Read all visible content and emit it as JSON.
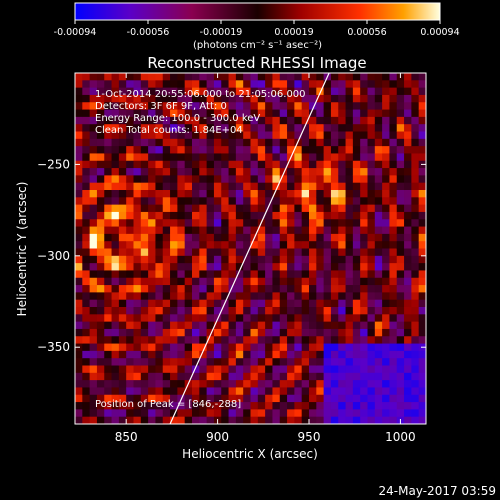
{
  "chart_data": {
    "type": "heatmap",
    "title": "Reconstructed RHESSI Image",
    "xlabel": "Heliocentric X (arcsec)",
    "ylabel": "Heliocentric Y (arcsec)",
    "xlim": [
      822,
      1014
    ],
    "ylim": [
      -392,
      -200
    ],
    "x_ticks": [
      850,
      900,
      950,
      1000
    ],
    "y_ticks": [
      -250,
      -300,
      -350
    ],
    "colorbar": {
      "label": "(photons cm⁻² s⁻¹ asec⁻²)",
      "range": [
        -0.00094,
        0.00094
      ],
      "ticks": [
        "-0.00094",
        "-0.00056",
        "-0.00019",
        "0.00019",
        "0.00056",
        "0.00094"
      ],
      "colormap": "rainbow"
    },
    "annotations": [
      "1-Oct-2014 20:55:06.000 to 21:05:06.000",
      "Detectors: 3F 6F 9F, Att: 0",
      "Energy Range: 100.0 - 300.0 keV",
      "Clean    Total counts: 1.84E+04"
    ],
    "peak": {
      "x": 846,
      "y": -288,
      "label": "Position of Peak = [846,-288]"
    },
    "limb_line": {
      "x": [
        874,
        961
      ],
      "y": [
        -392,
        -200
      ]
    },
    "grid": false,
    "colors": {
      "background": "#000000",
      "text": "#ffffff",
      "peak_region": "#ffff60",
      "low_region": "#3a2aa0"
    }
  },
  "footer": {
    "date": "24-May-2017 03:59"
  }
}
